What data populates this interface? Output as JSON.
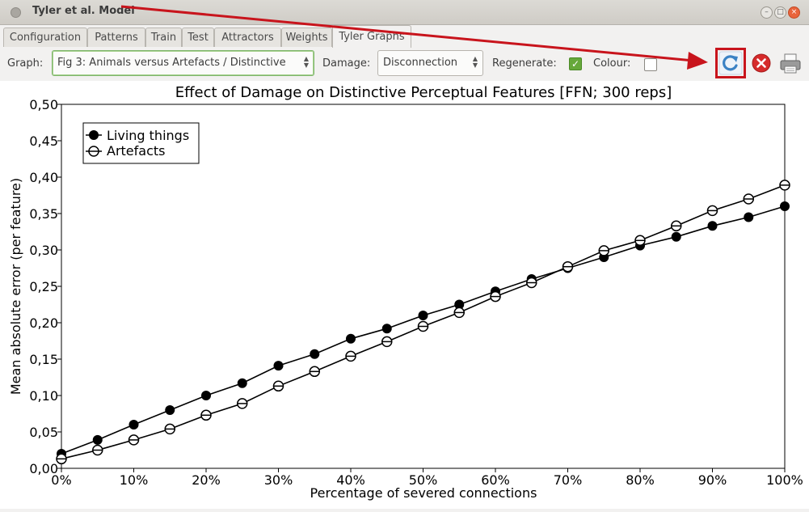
{
  "window": {
    "title": "Tyler et al. Model"
  },
  "tabs": [
    "Configuration",
    "Patterns",
    "Train",
    "Test",
    "Attractors",
    "Weights",
    "Tyler Graphs"
  ],
  "toolbar": {
    "graph_label": "Graph:",
    "graph_value": "Fig 3: Animals versus Artefacts / Distinctive",
    "damage_label": "Damage:",
    "damage_value": "Disconnection",
    "regenerate_label": "Regenerate:",
    "regenerate_checked": true,
    "colour_label": "Colour:",
    "colour_checked": false,
    "icons": [
      "refresh-icon",
      "close-icon",
      "print-icon"
    ]
  },
  "chart_data": {
    "type": "line",
    "title": "Effect of Damage on Distinctive Perceptual Features [FFN; 300 reps]",
    "xlabel": "Percentage of severed connections",
    "ylabel": "Mean absolute error (per feature)",
    "x": [
      0,
      5,
      10,
      15,
      20,
      25,
      30,
      35,
      40,
      45,
      50,
      55,
      60,
      65,
      70,
      75,
      80,
      85,
      90,
      95,
      100
    ],
    "xlim": [
      0,
      100
    ],
    "ylim": [
      0,
      0.5
    ],
    "xticks": [
      "0%",
      "10%",
      "20%",
      "30%",
      "40%",
      "50%",
      "60%",
      "70%",
      "80%",
      "90%",
      "100%"
    ],
    "yticks": [
      "0,00",
      "0,05",
      "0,10",
      "0,15",
      "0,20",
      "0,25",
      "0,30",
      "0,35",
      "0,40",
      "0,45",
      "0,50"
    ],
    "legend_position": "top-left",
    "series": [
      {
        "name": "Living things",
        "marker": "filled-circle",
        "values": [
          0.02,
          0.039,
          0.06,
          0.08,
          0.1,
          0.117,
          0.141,
          0.157,
          0.178,
          0.192,
          0.21,
          0.225,
          0.243,
          0.26,
          0.275,
          0.29,
          0.306,
          0.318,
          0.333,
          0.345,
          0.36
        ]
      },
      {
        "name": "Artefacts",
        "marker": "open-circle-bar",
        "values": [
          0.013,
          0.025,
          0.039,
          0.054,
          0.073,
          0.089,
          0.113,
          0.133,
          0.154,
          0.174,
          0.195,
          0.214,
          0.236,
          0.255,
          0.277,
          0.299,
          0.313,
          0.333,
          0.354,
          0.37,
          0.389
        ]
      }
    ]
  }
}
